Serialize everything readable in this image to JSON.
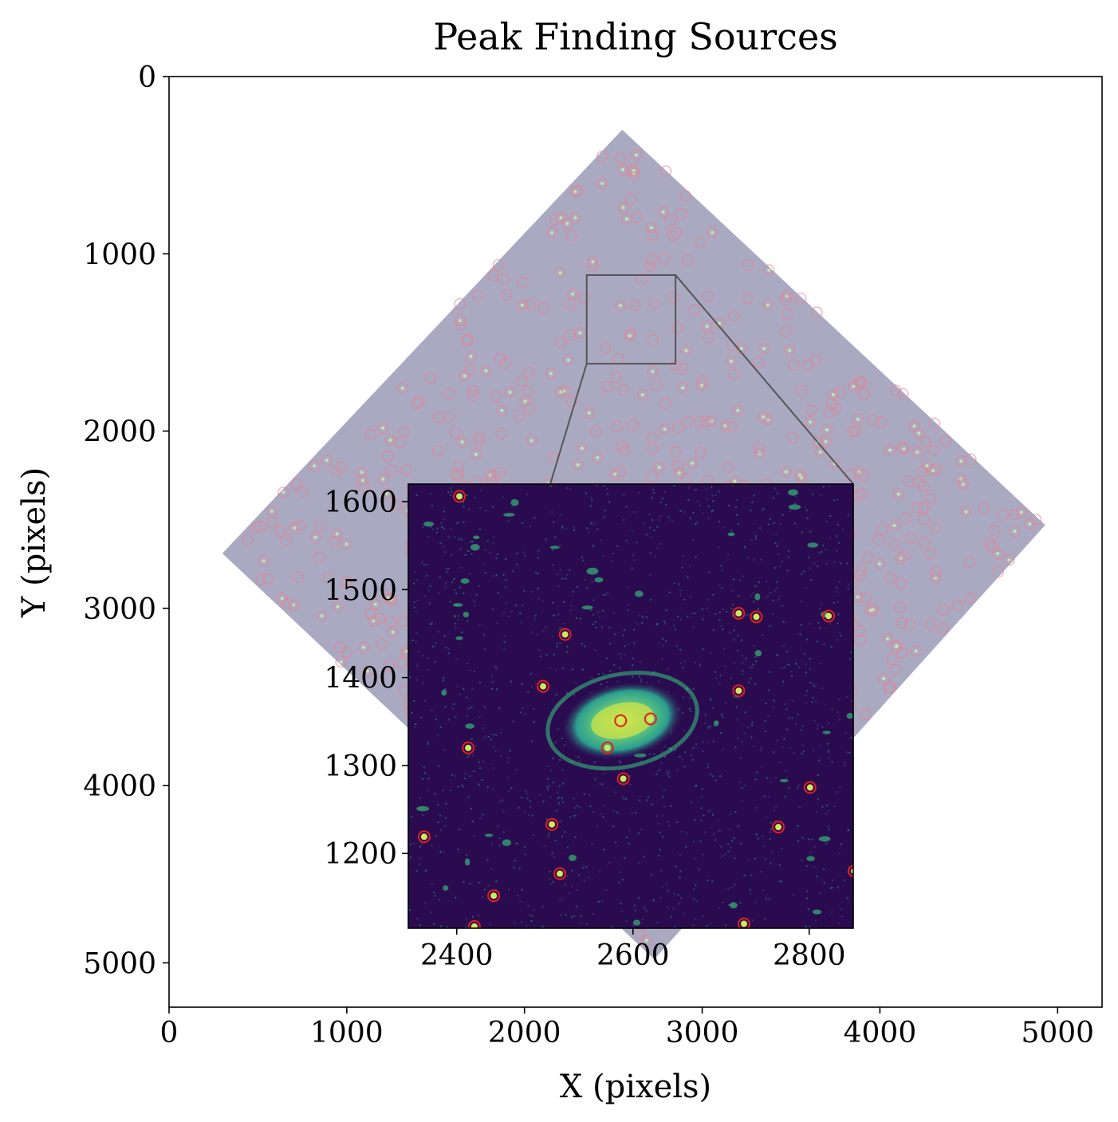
{
  "chart_data": {
    "type": "scatter",
    "title": "Peak Finding Sources",
    "xlabel": "X (pixels)",
    "ylabel": "Y (pixels)",
    "xlim": [
      0,
      5250
    ],
    "ylim": [
      5250,
      0
    ],
    "y_inverted": true,
    "xticks": [
      "0",
      "1000",
      "2000",
      "3000",
      "4000",
      "5000"
    ],
    "yticks": [
      "0",
      "1000",
      "2000",
      "3000",
      "4000",
      "5000"
    ],
    "image_footprint": [
      [
        2550,
        300
      ],
      [
        4930,
        2530
      ],
      [
        2730,
        4980
      ],
      [
        300,
        2690
      ]
    ],
    "zoom_box": {
      "x": [
        2350,
        2850
      ],
      "y": [
        1120,
        1620
      ]
    },
    "colors": {
      "footprint": "#a5a4bf",
      "source_circle": "#e8818f",
      "inset_bg": "#2b0b4f",
      "marker": "#e0201e",
      "galaxy": "#5fcf8a",
      "connector": "#555555"
    },
    "inset": {
      "xlim": [
        2345,
        2850
      ],
      "ylim": [
        1115,
        1620
      ],
      "xticks": [
        "2400",
        "2600",
        "2800"
      ],
      "yticks": [
        "1200",
        "1300",
        "1400",
        "1500",
        "1600"
      ],
      "sources": [
        {
          "x": 2403,
          "y": 1606
        },
        {
          "x": 2523,
          "y": 1449
        },
        {
          "x": 2720,
          "y": 1473
        },
        {
          "x": 2740,
          "y": 1469
        },
        {
          "x": 2822,
          "y": 1470
        },
        {
          "x": 2498,
          "y": 1390
        },
        {
          "x": 2720,
          "y": 1385
        },
        {
          "x": 2586,
          "y": 1351
        },
        {
          "x": 2620,
          "y": 1353
        },
        {
          "x": 2413,
          "y": 1320
        },
        {
          "x": 2571,
          "y": 1320
        },
        {
          "x": 2589,
          "y": 1285
        },
        {
          "x": 2801,
          "y": 1275
        },
        {
          "x": 2508,
          "y": 1233
        },
        {
          "x": 2765,
          "y": 1230
        },
        {
          "x": 2363,
          "y": 1219
        },
        {
          "x": 2517,
          "y": 1177
        },
        {
          "x": 2851,
          "y": 1180
        },
        {
          "x": 2442,
          "y": 1152
        },
        {
          "x": 2420,
          "y": 1117
        },
        {
          "x": 2726,
          "y": 1120
        }
      ]
    }
  }
}
